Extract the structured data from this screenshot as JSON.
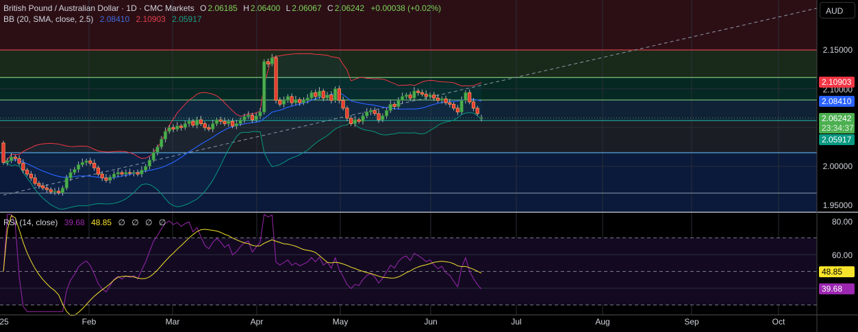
{
  "header": {
    "symbol": "British Pound / Australian Dollar · 1D · CMC Markets",
    "o_label": "O",
    "o": "2.06185",
    "h_label": "H",
    "h": "2.06400",
    "l_label": "L",
    "l": "2.06067",
    "c_label": "C",
    "c": "2.06242",
    "change": "+0.00038 (+0.02%)"
  },
  "bb_legend": {
    "title": "BB (20, SMA, close, 2.5)",
    "basis": "2.08410",
    "upper": "2.10903",
    "lower": "2.05917"
  },
  "rsi_legend": {
    "title": "RSI (14, close)",
    "rsi": "39.68",
    "ma": "48.85",
    "extras": "∅ ∅ ∅ ∅"
  },
  "price_axis": {
    "currency": "AUD",
    "ticks": [
      "2.15000",
      "2.10000",
      "2.00000",
      "1.95000"
    ],
    "upper_badge": "2.10903",
    "basis_badge": "2.08410",
    "last_price": "2.06242",
    "countdown": "23:34:37",
    "lower_badge": "2.05917"
  },
  "rsi_axis": {
    "ticks": [
      "80.00",
      "60.00"
    ],
    "ma_badge": "48.85",
    "rsi_badge": "39.68"
  },
  "time_axis": [
    "25",
    "Feb",
    "Mar",
    "Apr",
    "May",
    "Jun",
    "Jul",
    "Aug",
    "Sep",
    "Oct"
  ],
  "colors": {
    "up": "#4caf50",
    "down": "#e53935",
    "bb_basis": "#2962ff",
    "bb_upper": "#f23645",
    "bb_lower": "#089981",
    "rsi": "#9c27b0",
    "rsi_ma": "#f7e32b"
  },
  "chart_data": {
    "type": "candlestick",
    "title": "British Pound / Australian Dollar · 1D",
    "ylim": [
      1.94,
      2.17
    ],
    "first_open": 2.03,
    "last_open": 2.06185,
    "closes": [
      2.005,
      2.007,
      2.012,
      2.01,
      2.004,
      1.995,
      1.99,
      1.985,
      1.978,
      1.975,
      1.972,
      1.97,
      1.967,
      1.968,
      1.966,
      1.972,
      1.985,
      1.992,
      1.996,
      2.002,
      2.005,
      2.007,
      2.004,
      1.998,
      1.99,
      1.985,
      1.982,
      1.986,
      1.99,
      1.992,
      1.99,
      1.992,
      1.991,
      1.992,
      1.99,
      1.995,
      2.0,
      2.008,
      2.018,
      2.025,
      2.035,
      2.045,
      2.05,
      2.048,
      2.052,
      2.05,
      2.055,
      2.058,
      2.053,
      2.06,
      2.055,
      2.05,
      2.048,
      2.055,
      2.06,
      2.058,
      2.055,
      2.058,
      2.052,
      2.055,
      2.06,
      2.064,
      2.066,
      2.06,
      2.065,
      2.07,
      2.135,
      2.132,
      2.14,
      2.085,
      2.08,
      2.085,
      2.09,
      2.082,
      2.086,
      2.082,
      2.085,
      2.088,
      2.095,
      2.09,
      2.097,
      2.088,
      2.092,
      2.085,
      2.1,
      2.085,
      2.075,
      2.062,
      2.055,
      2.06,
      2.058,
      2.065,
      2.07,
      2.072,
      2.068,
      2.06,
      2.065,
      2.072,
      2.08,
      2.077,
      2.085,
      2.09,
      2.092,
      2.088,
      2.097,
      2.095,
      2.093,
      2.09,
      2.092,
      2.088,
      2.085,
      2.087,
      2.082,
      2.08,
      2.075,
      2.07,
      2.085,
      2.095,
      2.083,
      2.075,
      2.068,
      2.06242
    ],
    "levels": [
      2.15,
      2.1145,
      2.0855,
      2.059,
      2.0175,
      1.9655
    ],
    "rsi_levels": [
      70,
      50,
      30
    ],
    "rsi_ylim": [
      25,
      85
    ]
  }
}
